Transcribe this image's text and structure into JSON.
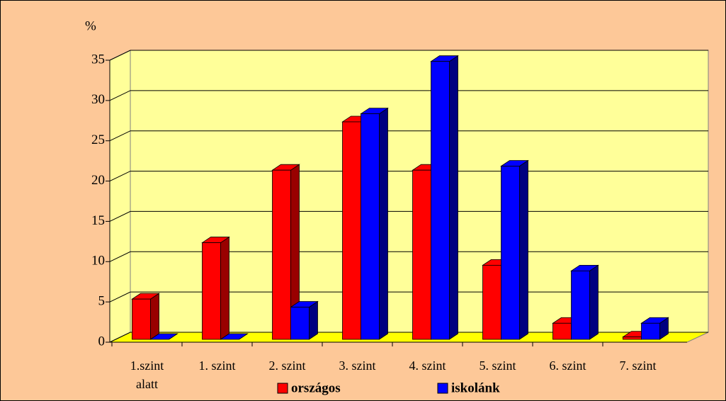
{
  "chart_data": {
    "type": "bar3d",
    "y_label": "%",
    "categories": [
      "1.szint alatt",
      "1. szint",
      "2. szint",
      "3. szint",
      "4. szint",
      "5. szint",
      "6. szint",
      "7. szint"
    ],
    "series": [
      {
        "name": "országos",
        "color": "#ff0000",
        "values": [
          5,
          12,
          21,
          27,
          21,
          9.2,
          2,
          0.3
        ]
      },
      {
        "name": "iskolánk",
        "color": "#0000ff",
        "values": [
          0,
          0,
          4,
          28,
          34.5,
          21.5,
          8.5,
          2
        ]
      }
    ],
    "ylim": [
      0,
      35
    ],
    "yticks": [
      0,
      5,
      10,
      15,
      20,
      25,
      30,
      35
    ],
    "grid": true,
    "legend": "bottom"
  }
}
